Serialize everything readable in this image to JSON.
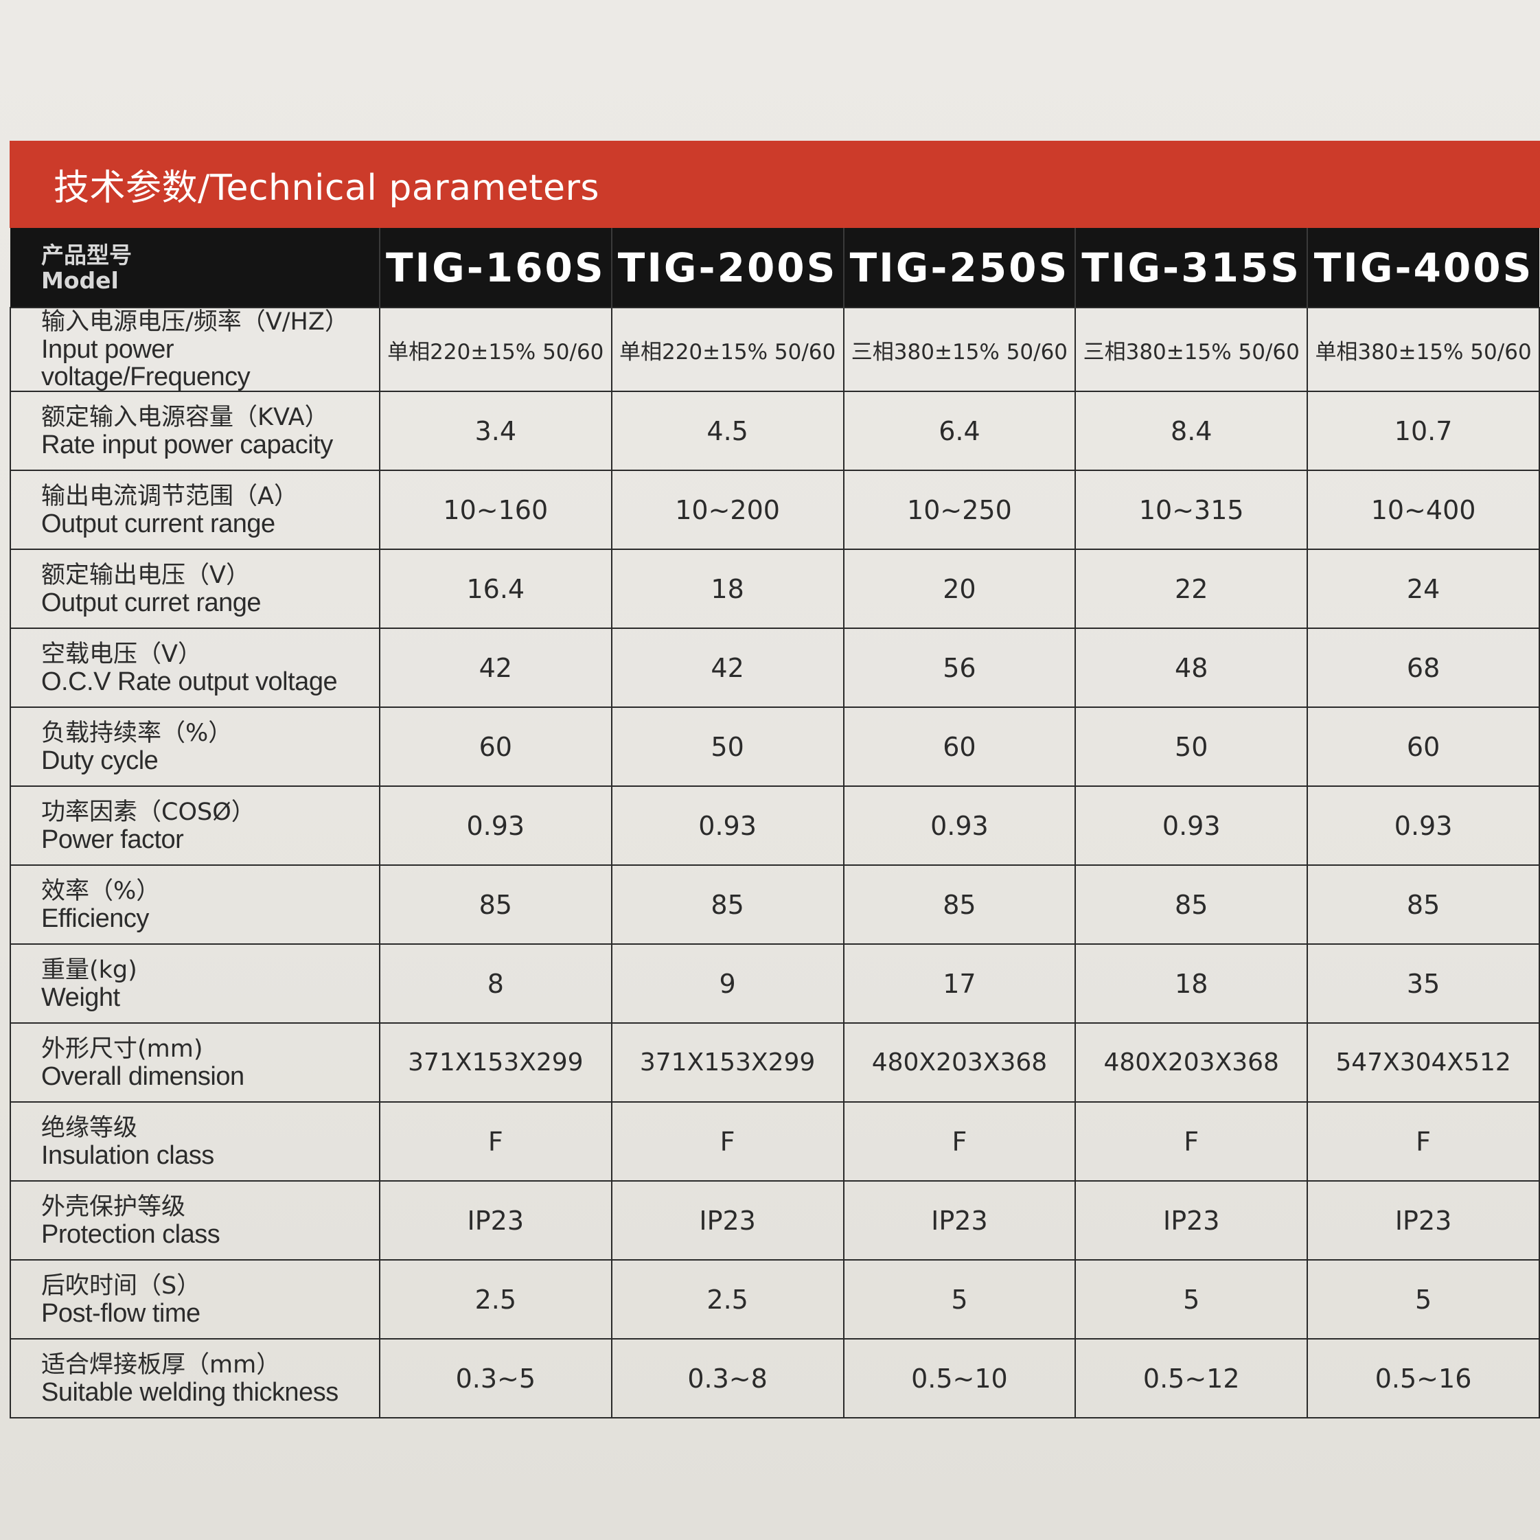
{
  "title": "技术参数/Technical parameters",
  "header": {
    "label_zh": "产品型号",
    "label_en": "Model",
    "models": [
      "TIG-160S",
      "TIG-200S",
      "TIG-250S",
      "TIG-315S",
      "TIG-400S"
    ]
  },
  "rows": [
    {
      "zh": "输入电源电压/频率（V/HZ）",
      "en": "Input power voltage/Frequency",
      "values": [
        "单相220±15% 50/60",
        "单相220±15% 50/60",
        "三相380±15% 50/60",
        "三相380±15% 50/60",
        "单相380±15% 50/60"
      ]
    },
    {
      "zh": "额定输入电源容量（KVA）",
      "en": "Rate input power capacity",
      "values": [
        "3.4",
        "4.5",
        "6.4",
        "8.4",
        "10.7"
      ]
    },
    {
      "zh": "输出电流调节范围（A）",
      "en": "Output current range",
      "values": [
        "10~160",
        "10~200",
        "10~250",
        "10~315",
        "10~400"
      ]
    },
    {
      "zh": "额定输出电压（V）",
      "en": "Output curret range",
      "values": [
        "16.4",
        "18",
        "20",
        "22",
        "24"
      ]
    },
    {
      "zh": "空载电压（V）",
      "en": "O.C.V Rate output voltage",
      "values": [
        "42",
        "42",
        "56",
        "48",
        "68"
      ]
    },
    {
      "zh": "负载持续率（%）",
      "en": "Duty cycle",
      "values": [
        "60",
        "50",
        "60",
        "50",
        "60"
      ]
    },
    {
      "zh": "功率因素（COSØ）",
      "en": "Power factor",
      "values": [
        "0.93",
        "0.93",
        "0.93",
        "0.93",
        "0.93"
      ]
    },
    {
      "zh": "效率（%）",
      "en": "Efficiency",
      "values": [
        "85",
        "85",
        "85",
        "85",
        "85"
      ]
    },
    {
      "zh": "重量(kg)",
      "en": "Weight",
      "values": [
        "8",
        "9",
        "17",
        "18",
        "35"
      ]
    },
    {
      "zh": "外形尺寸(mm)",
      "en": "Overall dimension",
      "values": [
        "371X153X299",
        "371X153X299",
        "480X203X368",
        "480X203X368",
        "547X304X512"
      ]
    },
    {
      "zh": "绝缘等级",
      "en": "Insulation class",
      "values": [
        "F",
        "F",
        "F",
        "F",
        "F"
      ]
    },
    {
      "zh": "外壳保护等级",
      "en": "Protection class",
      "values": [
        "IP23",
        "IP23",
        "IP23",
        "IP23",
        "IP23"
      ]
    },
    {
      "zh": "后吹时间（S）",
      "en": "Post-flow time",
      "values": [
        "2.5",
        "2.5",
        "5",
        "5",
        "5"
      ]
    },
    {
      "zh": "适合焊接板厚（mm）",
      "en": "Suitable welding thickness",
      "values": [
        "0.3~5",
        "0.3~8",
        "0.5~10",
        "0.5~12",
        "0.5~16"
      ]
    }
  ]
}
